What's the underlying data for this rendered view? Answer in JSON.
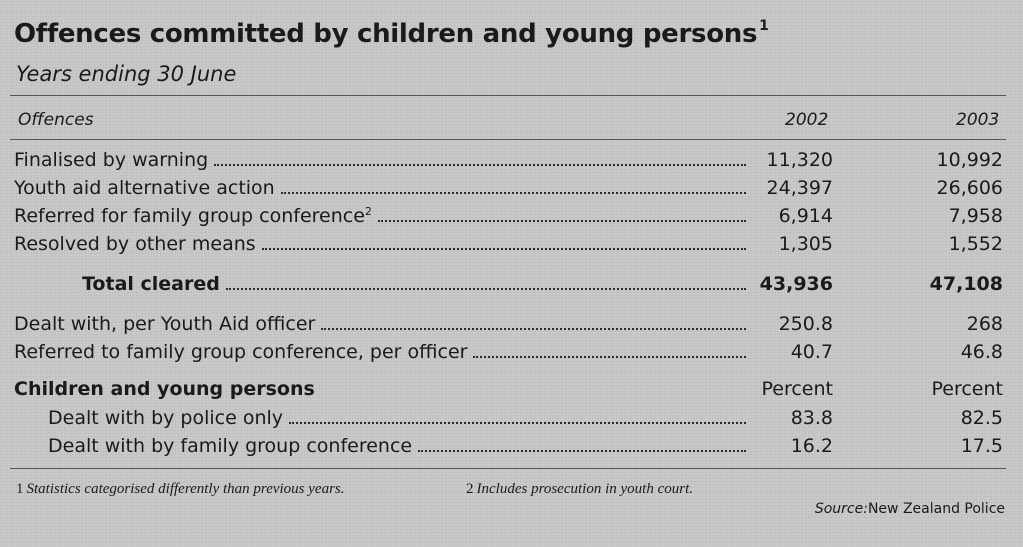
{
  "title": "Offences committed by children and young persons",
  "title_note": "1",
  "subtitle": "Years ending 30 June",
  "header": {
    "offences": "Offences",
    "year1": "2002",
    "year2": "2003"
  },
  "rows": [
    {
      "label": "Finalised by warning",
      "note": "",
      "v2002": "11,320",
      "v2003": "10,992"
    },
    {
      "label": "Youth aid alternative action",
      "note": "",
      "v2002": "24,397",
      "v2003": "26,606"
    },
    {
      "label": "Referred for family group conference",
      "note": "2",
      "v2002": "6,914",
      "v2003": "7,958"
    },
    {
      "label": "Resolved by other means",
      "note": "",
      "v2002": "1,305",
      "v2003": "1,552"
    }
  ],
  "total": {
    "label": "Total cleared",
    "v2002": "43,936",
    "v2003": "47,108"
  },
  "per_officer": [
    {
      "label": "Dealt with, per Youth Aid officer",
      "v2002": "250.8",
      "v2003": "268"
    },
    {
      "label": "Referred to family group conference, per officer",
      "v2002": "40.7",
      "v2003": "46.8"
    }
  ],
  "children": {
    "heading": "Children and young persons",
    "unit2002": "Percent",
    "unit2003": "Percent",
    "rows": [
      {
        "label": "Dealt with by police only",
        "v2002": "83.8",
        "v2003": "82.5"
      },
      {
        "label": "Dealt with by family group conference",
        "v2002": "16.2",
        "v2003": "17.5"
      }
    ]
  },
  "footnotes": [
    {
      "num": "1",
      "text": "Statistics categorised differently than previous years."
    },
    {
      "num": "2",
      "text": "Includes prosecution in youth court."
    }
  ],
  "source": {
    "label": "Source:",
    "text": "New Zealand Police"
  }
}
